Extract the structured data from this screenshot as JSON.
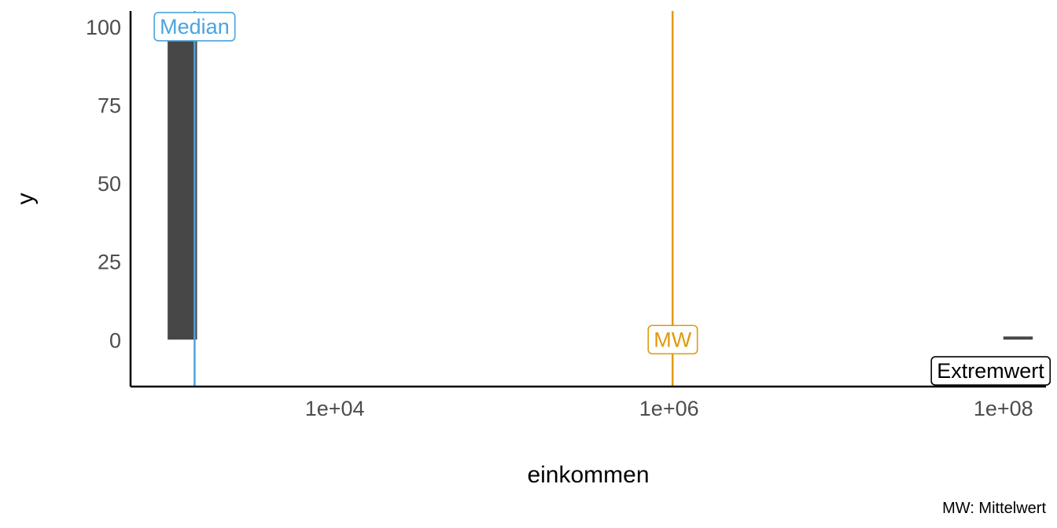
{
  "chart_data": {
    "type": "bar",
    "x_scale": "log10",
    "xlabel": "einkommen",
    "ylabel": "y",
    "x_ticks": [
      {
        "value": 10000,
        "label": "1e+04"
      },
      {
        "value": 1000000,
        "label": "1e+06"
      },
      {
        "value": 100000000,
        "label": "1e+08"
      }
    ],
    "y_ticks": [
      {
        "value": 0,
        "label": "0"
      },
      {
        "value": 25,
        "label": "25"
      },
      {
        "value": 50,
        "label": "50"
      },
      {
        "value": 75,
        "label": "75"
      },
      {
        "value": 100,
        "label": "100"
      }
    ],
    "xlim": [
      600,
      180000000
    ],
    "ylim": [
      -15,
      105
    ],
    "bars": [
      {
        "x_from": 1000,
        "x_to": 1500,
        "y": 100
      },
      {
        "x_from": 100000000,
        "x_to": 150000000,
        "y": 1
      }
    ],
    "reference_lines": [
      {
        "name": "Median",
        "x": 1450,
        "color": "#4aa4de",
        "label": "Median",
        "label_y": 100
      },
      {
        "name": "MW",
        "x": 1050000,
        "color": "#e09a10",
        "label": "MW",
        "label_y": 0
      }
    ],
    "annotations": [
      {
        "label": "Extremwert",
        "x": 100000000,
        "y": -10,
        "color": "#000000"
      }
    ],
    "bar_color": "#474747",
    "caption": "MW: Mittelwert",
    "grid": false
  }
}
